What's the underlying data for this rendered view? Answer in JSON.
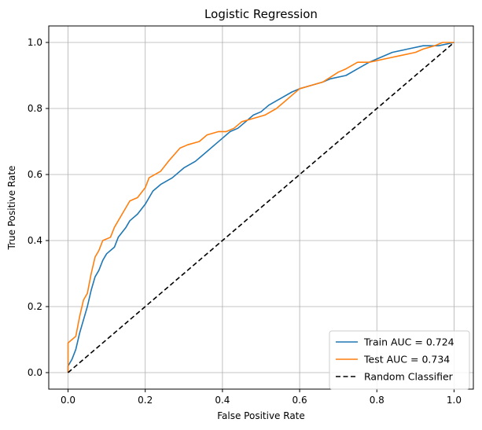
{
  "chart_data": {
    "type": "line",
    "title": "Logistic Regression",
    "xlabel": "False Positive Rate",
    "ylabel": "True Positive Rate",
    "xlim": [
      -0.05,
      1.05
    ],
    "ylim": [
      -0.05,
      1.05
    ],
    "grid": true,
    "legend_position": "lower-right",
    "x_ticks": [
      0.0,
      0.2,
      0.4,
      0.6,
      0.8,
      1.0
    ],
    "y_ticks": [
      0.0,
      0.2,
      0.4,
      0.6,
      0.8,
      1.0
    ],
    "x_tick_labels": [
      "0.0",
      "0.2",
      "0.4",
      "0.6",
      "0.8",
      "1.0"
    ],
    "y_tick_labels": [
      "0.0",
      "0.2",
      "0.4",
      "0.6",
      "0.8",
      "1.0"
    ],
    "series": [
      {
        "name": "Train AUC = 0.724",
        "color": "#1f77b4",
        "style": "solid",
        "points": [
          [
            0.0,
            0.0
          ],
          [
            0.0,
            0.02
          ],
          [
            0.01,
            0.04
          ],
          [
            0.02,
            0.07
          ],
          [
            0.03,
            0.12
          ],
          [
            0.04,
            0.16
          ],
          [
            0.05,
            0.2
          ],
          [
            0.06,
            0.25
          ],
          [
            0.07,
            0.29
          ],
          [
            0.08,
            0.31
          ],
          [
            0.09,
            0.34
          ],
          [
            0.1,
            0.36
          ],
          [
            0.12,
            0.38
          ],
          [
            0.13,
            0.41
          ],
          [
            0.15,
            0.44
          ],
          [
            0.16,
            0.46
          ],
          [
            0.18,
            0.48
          ],
          [
            0.2,
            0.51
          ],
          [
            0.22,
            0.55
          ],
          [
            0.24,
            0.57
          ],
          [
            0.27,
            0.59
          ],
          [
            0.3,
            0.62
          ],
          [
            0.33,
            0.64
          ],
          [
            0.36,
            0.67
          ],
          [
            0.38,
            0.69
          ],
          [
            0.4,
            0.71
          ],
          [
            0.42,
            0.73
          ],
          [
            0.44,
            0.74
          ],
          [
            0.46,
            0.76
          ],
          [
            0.48,
            0.78
          ],
          [
            0.5,
            0.79
          ],
          [
            0.52,
            0.81
          ],
          [
            0.55,
            0.83
          ],
          [
            0.58,
            0.85
          ],
          [
            0.6,
            0.86
          ],
          [
            0.63,
            0.87
          ],
          [
            0.66,
            0.88
          ],
          [
            0.68,
            0.89
          ],
          [
            0.72,
            0.9
          ],
          [
            0.75,
            0.92
          ],
          [
            0.78,
            0.94
          ],
          [
            0.8,
            0.95
          ],
          [
            0.84,
            0.97
          ],
          [
            0.88,
            0.98
          ],
          [
            0.92,
            0.99
          ],
          [
            0.96,
            0.99
          ],
          [
            1.0,
            1.0
          ]
        ]
      },
      {
        "name": "Test AUC = 0.734",
        "color": "#ff7f0e",
        "style": "solid",
        "points": [
          [
            0.0,
            0.0
          ],
          [
            0.0,
            0.09
          ],
          [
            0.01,
            0.1
          ],
          [
            0.02,
            0.11
          ],
          [
            0.03,
            0.17
          ],
          [
            0.04,
            0.22
          ],
          [
            0.05,
            0.24
          ],
          [
            0.06,
            0.3
          ],
          [
            0.07,
            0.35
          ],
          [
            0.08,
            0.37
          ],
          [
            0.09,
            0.4
          ],
          [
            0.11,
            0.41
          ],
          [
            0.12,
            0.44
          ],
          [
            0.14,
            0.48
          ],
          [
            0.16,
            0.52
          ],
          [
            0.18,
            0.53
          ],
          [
            0.2,
            0.56
          ],
          [
            0.21,
            0.59
          ],
          [
            0.24,
            0.61
          ],
          [
            0.26,
            0.64
          ],
          [
            0.29,
            0.68
          ],
          [
            0.31,
            0.69
          ],
          [
            0.34,
            0.7
          ],
          [
            0.36,
            0.72
          ],
          [
            0.39,
            0.73
          ],
          [
            0.41,
            0.73
          ],
          [
            0.43,
            0.74
          ],
          [
            0.45,
            0.76
          ],
          [
            0.48,
            0.77
          ],
          [
            0.51,
            0.78
          ],
          [
            0.54,
            0.8
          ],
          [
            0.56,
            0.82
          ],
          [
            0.58,
            0.84
          ],
          [
            0.6,
            0.86
          ],
          [
            0.63,
            0.87
          ],
          [
            0.66,
            0.88
          ],
          [
            0.7,
            0.91
          ],
          [
            0.72,
            0.92
          ],
          [
            0.75,
            0.94
          ],
          [
            0.78,
            0.94
          ],
          [
            0.82,
            0.95
          ],
          [
            0.86,
            0.96
          ],
          [
            0.9,
            0.97
          ],
          [
            0.92,
            0.98
          ],
          [
            0.95,
            0.99
          ],
          [
            0.97,
            1.0
          ],
          [
            1.0,
            1.0
          ]
        ]
      },
      {
        "name": "Random Classifier",
        "color": "#000000",
        "style": "dashed",
        "points": [
          [
            0.0,
            0.0
          ],
          [
            1.0,
            1.0
          ]
        ]
      }
    ]
  }
}
